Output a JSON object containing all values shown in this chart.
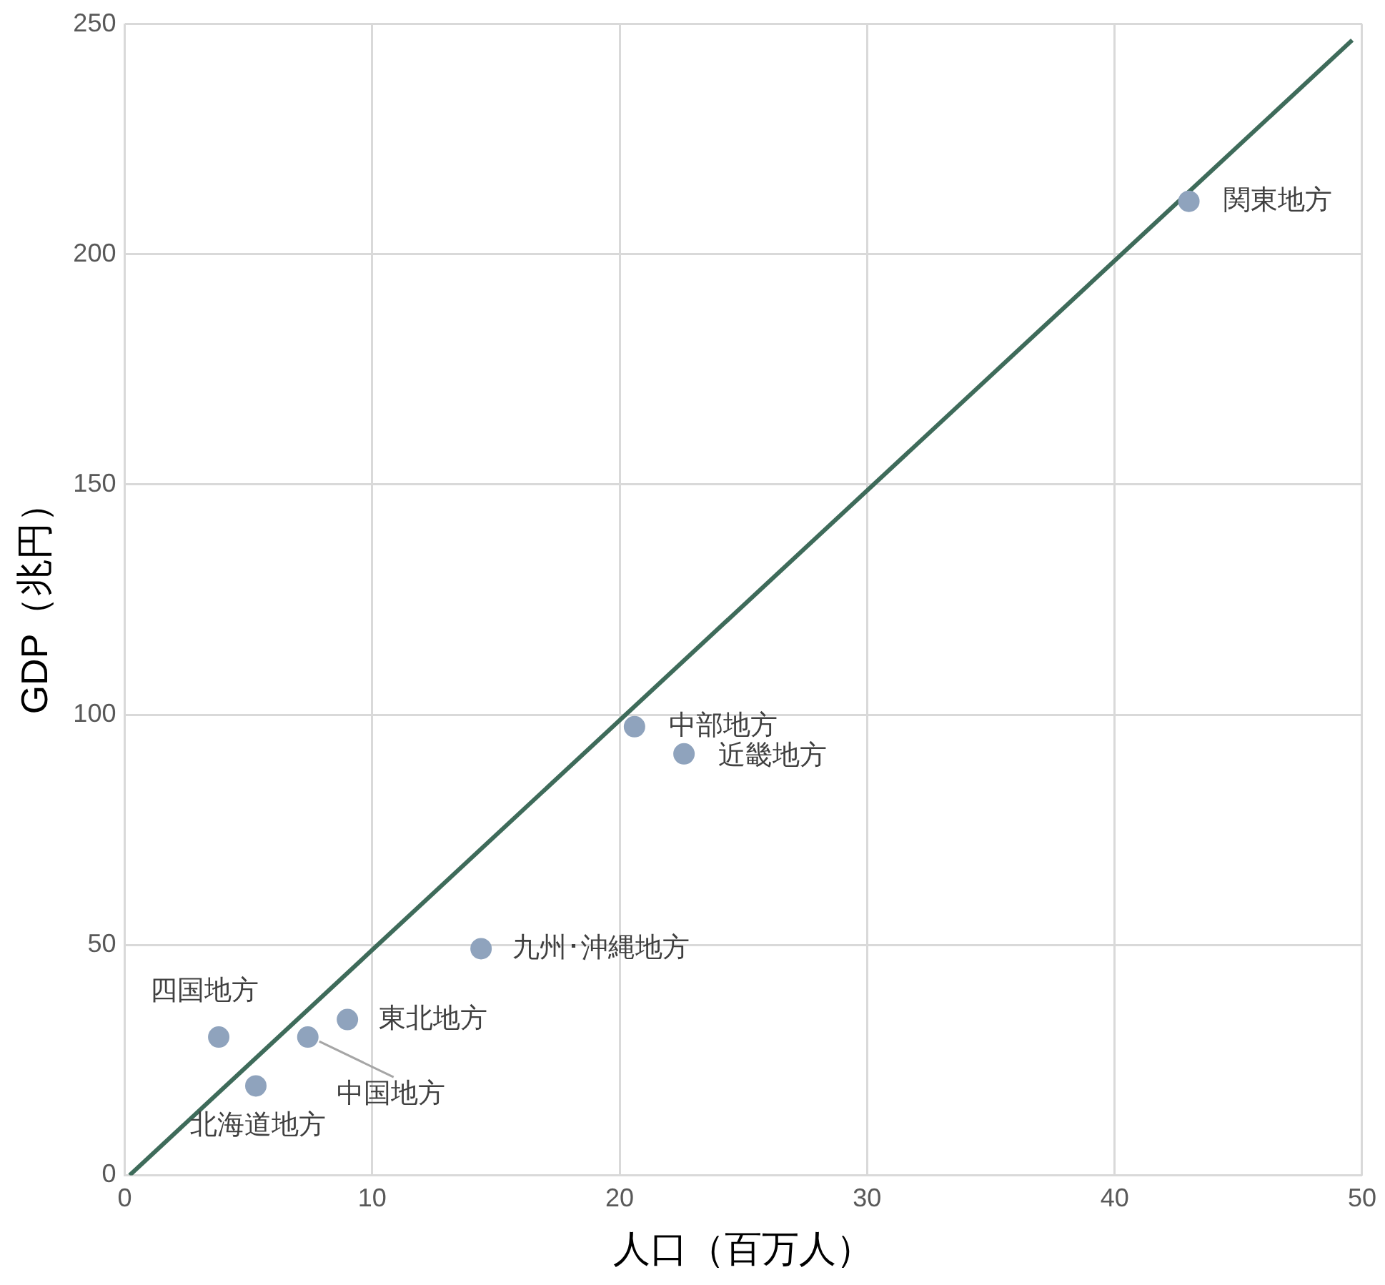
{
  "chart_data": {
    "type": "scatter",
    "xlabel": "人口（百万人）",
    "ylabel": "GDP（兆円）",
    "series": [
      {
        "marker": "circle",
        "color": "#8fa3bd",
        "x": [
          43.0,
          20.6,
          22.6,
          14.4,
          9.0,
          3.8,
          7.4,
          5.3
        ],
        "values": [
          211.5,
          97.4,
          91.5,
          49.2,
          33.8,
          30.0,
          30.0,
          19.4
        ]
      },
      {
        "type": "line",
        "marker": "none",
        "color": "#3e6b5a",
        "x": [
          0.2,
          49.6
        ],
        "values": [
          0,
          246.5
        ]
      }
    ],
    "annotations": [
      {
        "text": "関東地方",
        "x": 43.0,
        "y": 211.5
      },
      {
        "text": "中部地方",
        "x": 20.6,
        "y": 97.4
      },
      {
        "text": "近畿地方",
        "x": 22.6,
        "y": 91.5
      },
      {
        "text": "九州･沖縄地方",
        "x": 14.4,
        "y": 49.2
      },
      {
        "text": "東北地方",
        "x": 9.0,
        "y": 33.8
      },
      {
        "text": "四国地方",
        "x": 3.8,
        "y": 30.0
      },
      {
        "text": "中国地方",
        "x": 7.4,
        "y": 30.0
      },
      {
        "text": "北海道地方",
        "x": 5.3,
        "y": 19.4
      }
    ],
    "xlim": [
      0,
      50
    ],
    "xticks": [
      0,
      10,
      20,
      30,
      40,
      50
    ],
    "ylim": [
      0,
      250
    ],
    "yticks": [
      0,
      50,
      100,
      150,
      200,
      250
    ],
    "grid": true,
    "legend": false,
    "line_style": "solid"
  }
}
